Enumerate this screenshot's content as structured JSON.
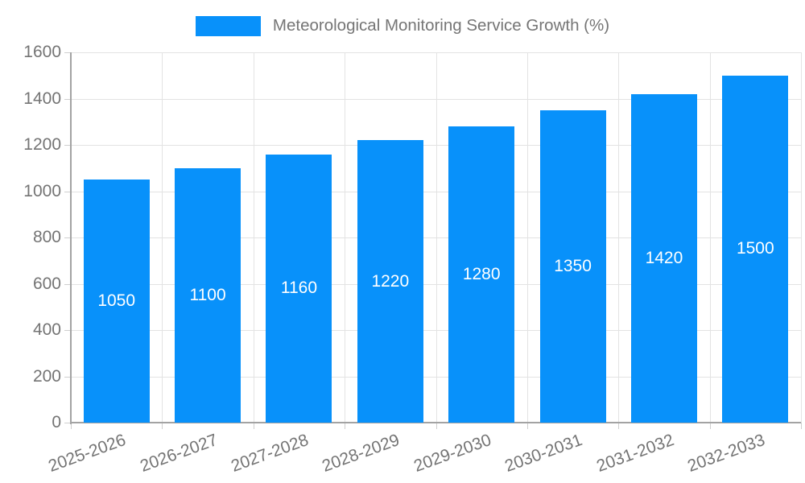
{
  "legend": {
    "label": "Meteorological Monitoring Service Growth (%)"
  },
  "colors": {
    "bar": "#0891FA",
    "grid": "#e3e3e3",
    "axis_line": "#a3a3a3",
    "tick": "#cfcfcf",
    "label_text": "#747474",
    "bar_label_text": "#ffffff",
    "background": "#ffffff"
  },
  "chart_data": {
    "type": "bar",
    "title": "Meteorological Monitoring Service Growth (%)",
    "categories": [
      "2025-2026",
      "2026-2027",
      "2027-2028",
      "2028-2029",
      "2029-2030",
      "2030-2031",
      "2031-2032",
      "2032-2033"
    ],
    "values": [
      1050,
      1100,
      1160,
      1220,
      1280,
      1350,
      1420,
      1500
    ],
    "xlabel": "",
    "ylabel": "",
    "ylim": [
      0,
      1600
    ],
    "ytick_step": 200,
    "grid": "both",
    "legend_position": "top-center",
    "value_labels": "inside-center",
    "x_label_rotation_deg": -20
  }
}
